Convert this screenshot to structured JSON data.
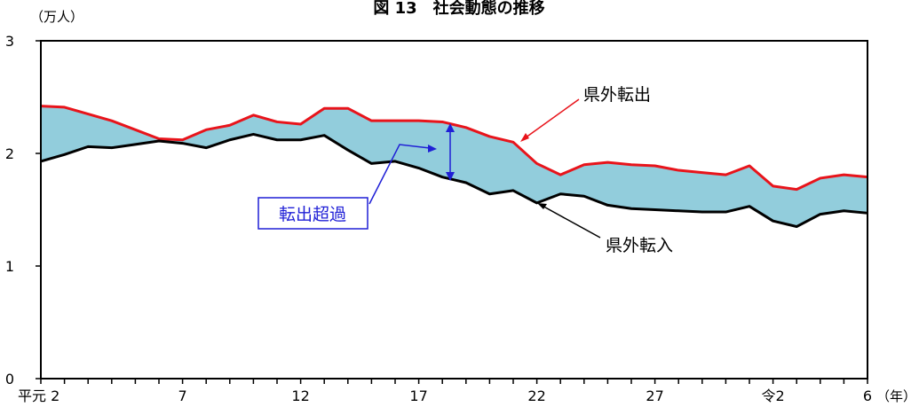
{
  "chart_data": {
    "type": "area",
    "title": "図 13　社会動態の推移",
    "y_unit": "（万人）",
    "x_unit": "（年）",
    "ylim": [
      0,
      3
    ],
    "y_ticks": [
      0,
      1,
      2,
      3
    ],
    "x_tick_labels": [
      {
        "label": "平元 2",
        "year": 1990
      },
      {
        "label": "7",
        "year": 1995
      },
      {
        "label": "12",
        "year": 2000
      },
      {
        "label": "17",
        "year": 2005
      },
      {
        "label": "22",
        "year": 2010
      },
      {
        "label": "27",
        "year": 2015
      },
      {
        "label": "令2",
        "year": 2020
      },
      {
        "label": "6",
        "year": 2024
      }
    ],
    "x": [
      1989,
      1990,
      1991,
      1992,
      1993,
      1994,
      1995,
      1996,
      1997,
      1998,
      1999,
      2000,
      2001,
      2002,
      2003,
      2004,
      2005,
      2006,
      2007,
      2008,
      2009,
      2010,
      2011,
      2012,
      2013,
      2014,
      2015,
      2016,
      2017,
      2018,
      2019,
      2020,
      2021,
      2022,
      2023,
      2024
    ],
    "series": [
      {
        "name": "県外転出",
        "color": "#e8141b",
        "values": [
          2.42,
          2.41,
          2.35,
          2.29,
          2.21,
          2.13,
          2.12,
          2.21,
          2.25,
          2.34,
          2.28,
          2.26,
          2.4,
          2.4,
          2.29,
          2.29,
          2.29,
          2.28,
          2.23,
          2.15,
          2.1,
          1.91,
          1.81,
          1.9,
          1.92,
          1.9,
          1.89,
          1.85,
          1.83,
          1.81,
          1.89,
          1.71,
          1.68,
          1.78,
          1.81,
          1.79
        ]
      },
      {
        "name": "県外転入",
        "color": "#000000",
        "values": [
          1.93,
          1.99,
          2.06,
          2.05,
          2.08,
          2.11,
          2.09,
          2.05,
          2.12,
          2.17,
          2.12,
          2.12,
          2.16,
          2.03,
          1.91,
          1.93,
          1.87,
          1.79,
          1.74,
          1.64,
          1.67,
          1.56,
          1.64,
          1.62,
          1.54,
          1.51,
          1.5,
          1.49,
          1.48,
          1.48,
          1.53,
          1.4,
          1.35,
          1.46,
          1.49,
          1.47
        ]
      }
    ],
    "fill_label": "転出超過",
    "fill_color": "#92cddc",
    "grid": false,
    "legend": "inline annotations"
  }
}
